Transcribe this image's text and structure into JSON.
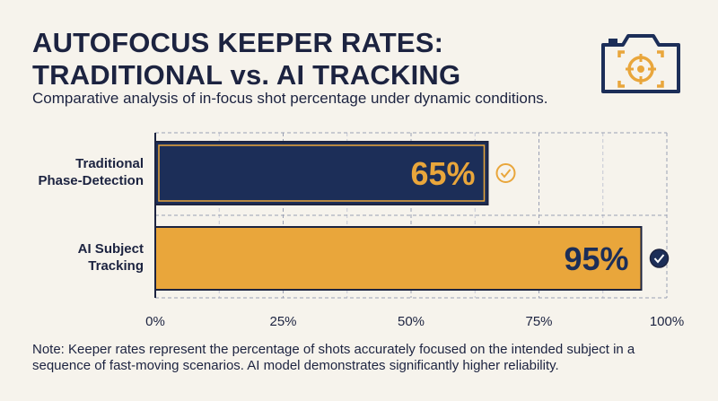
{
  "header": {
    "title_line1": "AUTOFOCUS KEEPER RATES:",
    "title_line2": "TRADITIONAL vs. AI TRACKING",
    "subtitle": "Comparative analysis of in-focus shot percentage under dynamic conditions."
  },
  "icons": {
    "logo": "camera-focus-icon",
    "check": "check-circle-icon"
  },
  "colors": {
    "navy": "#1c2e58",
    "gold": "#e9a63b",
    "text": "#1c2340",
    "background": "#f6f3ec"
  },
  "chart_data": {
    "type": "bar",
    "orientation": "horizontal",
    "categories": [
      "Traditional Phase-Detection",
      "AI Subject Tracking"
    ],
    "category_lines": [
      [
        "Traditional",
        "Phase-Detection"
      ],
      [
        "AI Subject",
        "Tracking"
      ]
    ],
    "values": [
      65,
      95
    ],
    "data_labels": [
      "65%",
      "95%"
    ],
    "xlim": [
      0,
      100
    ],
    "x_ticks": [
      0,
      25,
      50,
      75,
      100
    ],
    "x_tick_labels": [
      "0%",
      "25%",
      "50%",
      "75%",
      "100%"
    ],
    "grid": true,
    "bar_colors": [
      "#1c2e58",
      "#e9a63b"
    ],
    "label_colors": [
      "#e9a63b",
      "#1c2e58"
    ]
  },
  "footer": {
    "note": "Note: Keeper rates represent the percentage of shots accurately focused on the intended subject in a sequence of fast-moving scenarios. AI model demonstrates significantly higher reliability."
  }
}
